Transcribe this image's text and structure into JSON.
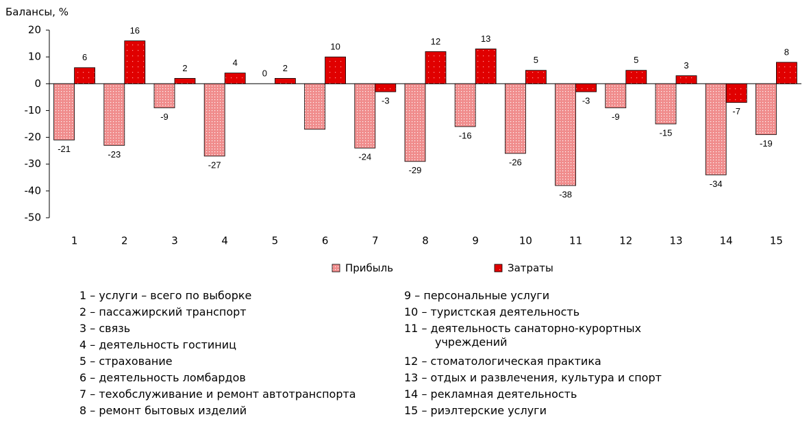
{
  "chart_data": {
    "type": "bar",
    "title": "Балансы, %",
    "categories": [
      "1",
      "2",
      "3",
      "4",
      "5",
      "6",
      "7",
      "8",
      "9",
      "10",
      "11",
      "12",
      "13",
      "14",
      "15"
    ],
    "series": [
      {
        "name": "Прибыль",
        "color": "#f08c8c",
        "values": [
          -21,
          -23,
          -9,
          -27,
          0,
          -17,
          -24,
          -29,
          -16,
          -26,
          -38,
          -9,
          -15,
          -34,
          -19
        ],
        "value_labels": [
          "-21",
          "-23",
          "-9",
          "-27",
          "0",
          null,
          "-24",
          "-29",
          "-16",
          "-26",
          "-38",
          "-9",
          "-15",
          "-34",
          "-19"
        ]
      },
      {
        "name": "Затраты",
        "color": "#e00000",
        "values": [
          6,
          16,
          2,
          4,
          2,
          10,
          -3,
          12,
          13,
          5,
          -3,
          5,
          3,
          -7,
          8
        ]
      }
    ],
    "ylim": [
      -50,
      20
    ],
    "yticks": [
      -50,
      -40,
      -30,
      -20,
      -10,
      0,
      10,
      20
    ],
    "legend": "bottom",
    "notes": [
      "1 – услуги – всего по выборке",
      "2 – пассажирский транспорт",
      "3 – связь",
      "4 – деятельность гостиниц",
      "5 – страхование",
      "6 – деятельность ломбардов",
      "7 – техобслуживание и ремонт автотранспорта",
      "8 – ремонт бытовых изделий",
      "9 – персональные услуги",
      "10 – туристская деятельность",
      "11 – деятельность санаторно-курортных учреждений",
      "12 – стоматологическая практика",
      "13 – отдых и развлечения, культура и спорт",
      "14 – рекламная деятельность",
      "15 – риэлтерские услуги"
    ]
  }
}
